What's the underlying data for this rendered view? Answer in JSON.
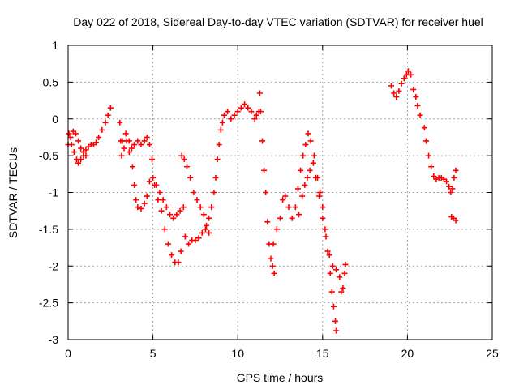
{
  "chart_data": {
    "type": "scatter",
    "title": "Day 022 of 2018, Sidereal Day-to-day VTEC variation (SDTVAR) for receiver huel",
    "xlabel": "GPS time / hours",
    "ylabel": "SDTVAR / TECUs",
    "xlim": [
      0,
      25
    ],
    "ylim": [
      -3,
      1
    ],
    "xticks": [
      0,
      5,
      10,
      15,
      20,
      25
    ],
    "yticks": [
      -3,
      -2.5,
      -2,
      -1.5,
      -1,
      -0.5,
      0,
      0.5,
      1
    ],
    "xtick_labels": [
      "0",
      "5",
      "10",
      "15",
      "20",
      "25"
    ],
    "ytick_labels": [
      "-3",
      "-2.5",
      "-2",
      "-1.5",
      "-1",
      "-0.5",
      "0",
      "0.5",
      "1"
    ],
    "grid": true,
    "marker": "+",
    "color": "#ff0000",
    "series": [
      {
        "points": [
          [
            0.0,
            -0.35
          ],
          [
            0.15,
            -0.25
          ],
          [
            0.3,
            -0.17
          ],
          [
            0.45,
            -0.2
          ],
          [
            0.6,
            -0.3
          ],
          [
            0.75,
            -0.4
          ],
          [
            0.9,
            -0.45
          ],
          [
            1.05,
            -0.42
          ],
          [
            1.2,
            -0.38
          ],
          [
            1.35,
            -0.35
          ],
          [
            1.5,
            -0.35
          ],
          [
            1.65,
            -0.32
          ],
          [
            1.8,
            -0.25
          ],
          [
            2.0,
            -0.15
          ],
          [
            2.2,
            -0.05
          ],
          [
            2.35,
            0.05
          ],
          [
            2.5,
            0.15
          ],
          [
            0.05,
            -0.2
          ],
          [
            0.2,
            -0.35
          ],
          [
            0.35,
            -0.45
          ],
          [
            0.5,
            -0.55
          ],
          [
            0.6,
            -0.6
          ],
          [
            0.75,
            -0.55
          ],
          [
            0.9,
            -0.5
          ],
          [
            1.05,
            -0.5
          ],
          [
            3.05,
            -0.05
          ],
          [
            3.1,
            -0.3
          ],
          [
            3.15,
            -0.5
          ],
          [
            3.3,
            -0.4
          ],
          [
            3.45,
            -0.3
          ],
          [
            3.6,
            -0.45
          ],
          [
            3.8,
            -0.65
          ],
          [
            3.9,
            -0.9
          ],
          [
            4.0,
            -1.1
          ],
          [
            4.1,
            -1.2
          ],
          [
            4.3,
            -1.22
          ],
          [
            4.5,
            -1.15
          ],
          [
            4.65,
            -1.05
          ],
          [
            4.8,
            -0.85
          ],
          [
            5.0,
            -0.8
          ],
          [
            5.2,
            -0.9
          ],
          [
            5.4,
            -1.0
          ],
          [
            5.6,
            -1.1
          ],
          [
            5.8,
            -1.2
          ],
          [
            6.0,
            -1.3
          ],
          [
            6.2,
            -1.35
          ],
          [
            6.4,
            -1.3
          ],
          [
            6.6,
            -1.25
          ],
          [
            6.8,
            -1.2
          ],
          [
            3.2,
            -0.3
          ],
          [
            3.4,
            -0.2
          ],
          [
            3.6,
            -0.3
          ],
          [
            3.75,
            -0.4
          ],
          [
            3.9,
            -0.35
          ],
          [
            4.1,
            -0.3
          ],
          [
            4.3,
            -0.35
          ],
          [
            4.5,
            -0.3
          ],
          [
            4.65,
            -0.25
          ],
          [
            4.8,
            -0.35
          ],
          [
            4.95,
            -0.55
          ],
          [
            5.1,
            -0.9
          ],
          [
            5.3,
            -1.1
          ],
          [
            5.5,
            -1.25
          ],
          [
            5.7,
            -1.5
          ],
          [
            5.9,
            -1.7
          ],
          [
            6.1,
            -1.85
          ],
          [
            6.3,
            -1.95
          ],
          [
            6.5,
            -1.95
          ],
          [
            6.65,
            -1.8
          ],
          [
            6.7,
            -0.5
          ],
          [
            6.85,
            -0.55
          ],
          [
            7.0,
            -0.65
          ],
          [
            7.2,
            -0.8
          ],
          [
            7.4,
            -1.0
          ],
          [
            7.6,
            -1.1
          ],
          [
            7.8,
            -1.2
          ],
          [
            8.0,
            -1.3
          ],
          [
            8.15,
            -1.45
          ],
          [
            8.3,
            -1.55
          ],
          [
            6.9,
            -1.6
          ],
          [
            7.1,
            -1.7
          ],
          [
            7.3,
            -1.65
          ],
          [
            7.5,
            -1.65
          ],
          [
            7.7,
            -1.62
          ],
          [
            7.9,
            -1.55
          ],
          [
            8.1,
            -1.5
          ],
          [
            8.3,
            -1.35
          ],
          [
            8.45,
            -1.2
          ],
          [
            8.6,
            -1.0
          ],
          [
            8.7,
            -0.8
          ],
          [
            8.8,
            -0.55
          ],
          [
            8.9,
            -0.35
          ],
          [
            9.0,
            -0.15
          ],
          [
            9.1,
            -0.05
          ],
          [
            9.2,
            0.05
          ],
          [
            9.4,
            0.1
          ],
          [
            9.6,
            0.0
          ],
          [
            9.8,
            0.05
          ],
          [
            10.0,
            0.1
          ],
          [
            10.2,
            0.15
          ],
          [
            10.4,
            0.2
          ],
          [
            10.6,
            0.15
          ],
          [
            10.8,
            0.1
          ],
          [
            11.0,
            0.0
          ],
          [
            11.1,
            0.05
          ],
          [
            11.25,
            0.1
          ],
          [
            11.3,
            0.35
          ],
          [
            11.35,
            0.1
          ],
          [
            11.45,
            -0.3
          ],
          [
            11.55,
            -0.7
          ],
          [
            11.65,
            -1.0
          ],
          [
            11.75,
            -1.4
          ],
          [
            11.85,
            -1.7
          ],
          [
            11.95,
            -1.9
          ],
          [
            12.05,
            -2.0
          ],
          [
            12.15,
            -2.1
          ],
          [
            12.1,
            -1.7
          ],
          [
            12.3,
            -1.5
          ],
          [
            12.5,
            -1.35
          ],
          [
            12.65,
            -1.1
          ],
          [
            12.8,
            -1.05
          ],
          [
            13.0,
            -1.2
          ],
          [
            13.2,
            -1.35
          ],
          [
            13.4,
            -1.2
          ],
          [
            13.55,
            -0.95
          ],
          [
            13.7,
            -0.7
          ],
          [
            13.85,
            -0.5
          ],
          [
            14.0,
            -0.35
          ],
          [
            14.15,
            -0.2
          ],
          [
            14.3,
            -0.3
          ],
          [
            14.5,
            -0.5
          ],
          [
            14.7,
            -0.8
          ],
          [
            14.85,
            -1.0
          ],
          [
            15.0,
            -1.2
          ],
          [
            15.15,
            -1.5
          ],
          [
            15.3,
            -1.8
          ],
          [
            15.45,
            -2.1
          ],
          [
            15.55,
            -2.35
          ],
          [
            15.65,
            -2.55
          ],
          [
            15.75,
            -2.75
          ],
          [
            15.8,
            -2.88
          ],
          [
            13.6,
            -1.3
          ],
          [
            13.8,
            -1.05
          ],
          [
            13.95,
            -0.9
          ],
          [
            14.1,
            -0.8
          ],
          [
            14.25,
            -0.7
          ],
          [
            14.45,
            -0.6
          ],
          [
            14.6,
            -0.8
          ],
          [
            14.8,
            -1.05
          ],
          [
            15.0,
            -1.35
          ],
          [
            15.2,
            -1.6
          ],
          [
            15.4,
            -1.85
          ],
          [
            15.6,
            -2.0
          ],
          [
            15.8,
            -2.05
          ],
          [
            16.0,
            -2.15
          ],
          [
            16.1,
            -2.35
          ],
          [
            16.2,
            -2.3
          ],
          [
            16.3,
            -2.1
          ],
          [
            16.35,
            -1.98
          ],
          [
            19.05,
            0.45
          ],
          [
            19.2,
            0.35
          ],
          [
            19.35,
            0.3
          ],
          [
            19.5,
            0.38
          ],
          [
            19.65,
            0.48
          ],
          [
            19.8,
            0.55
          ],
          [
            19.95,
            0.6
          ],
          [
            20.05,
            0.65
          ],
          [
            20.2,
            0.6
          ],
          [
            20.35,
            0.4
          ],
          [
            20.5,
            0.3
          ],
          [
            20.6,
            0.18
          ],
          [
            20.75,
            0.05
          ],
          [
            21.0,
            -0.12
          ],
          [
            21.1,
            -0.3
          ],
          [
            21.25,
            -0.5
          ],
          [
            21.4,
            -0.65
          ],
          [
            21.55,
            -0.78
          ],
          [
            21.7,
            -0.82
          ],
          [
            21.85,
            -0.8
          ],
          [
            22.0,
            -0.8
          ],
          [
            22.15,
            -0.82
          ],
          [
            22.3,
            -0.85
          ],
          [
            22.45,
            -0.92
          ],
          [
            22.55,
            -1.0
          ],
          [
            22.65,
            -0.95
          ],
          [
            22.75,
            -0.8
          ],
          [
            22.85,
            -0.7
          ],
          [
            22.6,
            -1.33
          ],
          [
            22.72,
            -1.35
          ],
          [
            22.85,
            -1.38
          ]
        ]
      }
    ]
  }
}
